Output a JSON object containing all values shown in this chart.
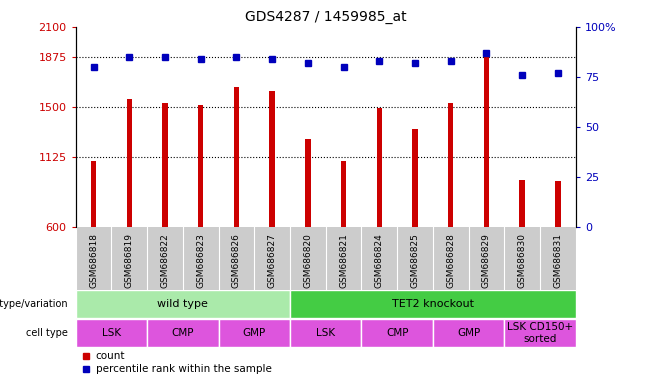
{
  "title": "GDS4287 / 1459985_at",
  "samples": [
    "GSM686818",
    "GSM686819",
    "GSM686822",
    "GSM686823",
    "GSM686826",
    "GSM686827",
    "GSM686820",
    "GSM686821",
    "GSM686824",
    "GSM686825",
    "GSM686828",
    "GSM686829",
    "GSM686830",
    "GSM686831"
  ],
  "counts": [
    1090,
    1560,
    1530,
    1510,
    1650,
    1620,
    1260,
    1090,
    1490,
    1330,
    1530,
    1870,
    950,
    940
  ],
  "percentile_ranks": [
    80,
    85,
    85,
    84,
    85,
    84,
    82,
    80,
    83,
    82,
    83,
    87,
    76,
    77
  ],
  "ylim_left": [
    600,
    2100
  ],
  "ylim_right": [
    0,
    100
  ],
  "yticks_left": [
    600,
    1125,
    1500,
    1875,
    2100
  ],
  "yticks_right": [
    0,
    25,
    50,
    75,
    100
  ],
  "bar_color": "#cc0000",
  "dot_color": "#0000bb",
  "background_color": "#ffffff",
  "grid_color": "#000000",
  "xticklabel_bg": "#cccccc",
  "genotype_groups": [
    {
      "label": "wild type",
      "start": 0,
      "end": 6,
      "color": "#aaeaaa"
    },
    {
      "label": "TET2 knockout",
      "start": 6,
      "end": 14,
      "color": "#44cc44"
    }
  ],
  "cell_type_groups": [
    {
      "label": "LSK",
      "start": 0,
      "end": 2
    },
    {
      "label": "CMP",
      "start": 2,
      "end": 4
    },
    {
      "label": "GMP",
      "start": 4,
      "end": 6
    },
    {
      "label": "LSK",
      "start": 6,
      "end": 8
    },
    {
      "label": "CMP",
      "start": 8,
      "end": 10
    },
    {
      "label": "GMP",
      "start": 10,
      "end": 12
    },
    {
      "label": "LSK CD150+\nsorted",
      "start": 12,
      "end": 14
    }
  ],
  "cell_type_color": "#dd55dd",
  "ylabel_left_color": "#cc0000",
  "ylabel_right_color": "#0000bb",
  "legend_count_color": "#cc0000",
  "legend_dot_color": "#0000bb"
}
